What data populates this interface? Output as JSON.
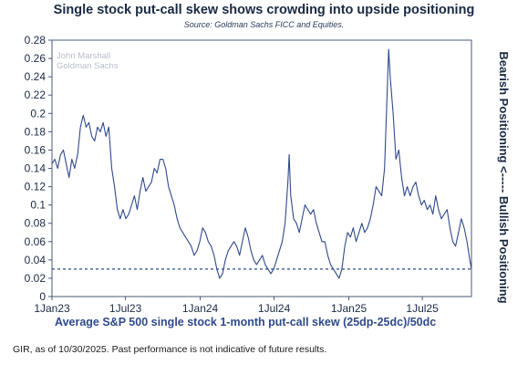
{
  "title": "Single stock put-call skew shows crowding into upside positioning",
  "source": "Source: Goldman Sachs FICC and Equities.",
  "watermark": [
    "John Marshall",
    "Goldman Sachs"
  ],
  "footer": "GIR, as of 10/30/2025. Past performance is not indicative of future results.",
  "chart_data": {
    "type": "line",
    "title": "Single stock put-call skew shows crowding into upside positioning",
    "xlabel": "Average S&P 500 single stock 1-month put-call skew (25dp-25dc)/50dc",
    "ylabel_right": "Bearish Positioning <----- Bullish Positioning",
    "ylim": [
      0,
      0.28
    ],
    "y_ticks": [
      "0",
      "0.02",
      "0.04",
      "0.06",
      "0.08",
      "0.1",
      "0.12",
      "0.14",
      "0.16",
      "0.18",
      "0.2",
      "0.22",
      "0.24",
      "0.26",
      "0.28"
    ],
    "x_ticks": [
      "1Jan23",
      "1Jul23",
      "1Jan24",
      "1Jul24",
      "1Jan25",
      "1Jul25"
    ],
    "x_range": [
      "2023-01-01",
      "2025-10-30"
    ],
    "grid": false,
    "reference_line": {
      "y": 0.03,
      "style": "dashed",
      "color": "#2f4a8c"
    },
    "series": [
      {
        "color": "#2f4a8c",
        "points": [
          [
            "2023-01-01",
            0.145
          ],
          [
            "2023-01-08",
            0.15
          ],
          [
            "2023-01-15",
            0.14
          ],
          [
            "2023-01-22",
            0.155
          ],
          [
            "2023-01-29",
            0.16
          ],
          [
            "2023-02-05",
            0.145
          ],
          [
            "2023-02-12",
            0.13
          ],
          [
            "2023-02-19",
            0.15
          ],
          [
            "2023-02-26",
            0.14
          ],
          [
            "2023-03-05",
            0.155
          ],
          [
            "2023-03-12",
            0.185
          ],
          [
            "2023-03-19",
            0.198
          ],
          [
            "2023-03-26",
            0.185
          ],
          [
            "2023-04-02",
            0.19
          ],
          [
            "2023-04-09",
            0.175
          ],
          [
            "2023-04-16",
            0.17
          ],
          [
            "2023-04-23",
            0.185
          ],
          [
            "2023-04-30",
            0.18
          ],
          [
            "2023-05-07",
            0.19
          ],
          [
            "2023-05-14",
            0.175
          ],
          [
            "2023-05-21",
            0.185
          ],
          [
            "2023-05-28",
            0.14
          ],
          [
            "2023-06-04",
            0.12
          ],
          [
            "2023-06-11",
            0.095
          ],
          [
            "2023-06-18",
            0.085
          ],
          [
            "2023-06-25",
            0.095
          ],
          [
            "2023-07-02",
            0.085
          ],
          [
            "2023-07-09",
            0.09
          ],
          [
            "2023-07-16",
            0.1
          ],
          [
            "2023-07-23",
            0.11
          ],
          [
            "2023-07-30",
            0.095
          ],
          [
            "2023-08-06",
            0.115
          ],
          [
            "2023-08-13",
            0.13
          ],
          [
            "2023-08-20",
            0.115
          ],
          [
            "2023-08-27",
            0.12
          ],
          [
            "2023-09-03",
            0.125
          ],
          [
            "2023-09-10",
            0.14
          ],
          [
            "2023-09-17",
            0.135
          ],
          [
            "2023-09-24",
            0.15
          ],
          [
            "2023-10-01",
            0.15
          ],
          [
            "2023-10-08",
            0.14
          ],
          [
            "2023-10-15",
            0.12
          ],
          [
            "2023-10-22",
            0.11
          ],
          [
            "2023-10-29",
            0.1
          ],
          [
            "2023-11-05",
            0.085
          ],
          [
            "2023-11-12",
            0.075
          ],
          [
            "2023-11-19",
            0.07
          ],
          [
            "2023-11-26",
            0.065
          ],
          [
            "2023-12-03",
            0.06
          ],
          [
            "2023-12-10",
            0.055
          ],
          [
            "2023-12-17",
            0.045
          ],
          [
            "2023-12-24",
            0.05
          ],
          [
            "2023-12-31",
            0.06
          ],
          [
            "2024-01-07",
            0.075
          ],
          [
            "2024-01-14",
            0.07
          ],
          [
            "2024-01-21",
            0.06
          ],
          [
            "2024-01-28",
            0.055
          ],
          [
            "2024-02-04",
            0.045
          ],
          [
            "2024-02-11",
            0.03
          ],
          [
            "2024-02-18",
            0.02
          ],
          [
            "2024-02-25",
            0.025
          ],
          [
            "2024-03-03",
            0.04
          ],
          [
            "2024-03-10",
            0.05
          ],
          [
            "2024-03-17",
            0.055
          ],
          [
            "2024-03-24",
            0.06
          ],
          [
            "2024-03-31",
            0.055
          ],
          [
            "2024-04-07",
            0.045
          ],
          [
            "2024-04-14",
            0.06
          ],
          [
            "2024-04-21",
            0.075
          ],
          [
            "2024-04-28",
            0.065
          ],
          [
            "2024-05-05",
            0.05
          ],
          [
            "2024-05-12",
            0.04
          ],
          [
            "2024-05-19",
            0.035
          ],
          [
            "2024-05-26",
            0.04
          ],
          [
            "2024-06-02",
            0.045
          ],
          [
            "2024-06-09",
            0.035
          ],
          [
            "2024-06-16",
            0.03
          ],
          [
            "2024-06-23",
            0.025
          ],
          [
            "2024-06-30",
            0.03
          ],
          [
            "2024-07-07",
            0.04
          ],
          [
            "2024-07-14",
            0.05
          ],
          [
            "2024-07-21",
            0.06
          ],
          [
            "2024-07-28",
            0.08
          ],
          [
            "2024-08-04",
            0.125
          ],
          [
            "2024-08-07",
            0.155
          ],
          [
            "2024-08-11",
            0.11
          ],
          [
            "2024-08-18",
            0.085
          ],
          [
            "2024-08-25",
            0.08
          ],
          [
            "2024-09-01",
            0.07
          ],
          [
            "2024-09-08",
            0.085
          ],
          [
            "2024-09-15",
            0.1
          ],
          [
            "2024-09-22",
            0.095
          ],
          [
            "2024-09-29",
            0.09
          ],
          [
            "2024-10-06",
            0.095
          ],
          [
            "2024-10-13",
            0.08
          ],
          [
            "2024-10-20",
            0.07
          ],
          [
            "2024-10-27",
            0.06
          ],
          [
            "2024-11-03",
            0.06
          ],
          [
            "2024-11-10",
            0.045
          ],
          [
            "2024-11-17",
            0.035
          ],
          [
            "2024-11-24",
            0.03
          ],
          [
            "2024-12-01",
            0.025
          ],
          [
            "2024-12-08",
            0.02
          ],
          [
            "2024-12-15",
            0.03
          ],
          [
            "2024-12-22",
            0.055
          ],
          [
            "2024-12-29",
            0.07
          ],
          [
            "2025-01-05",
            0.065
          ],
          [
            "2025-01-12",
            0.075
          ],
          [
            "2025-01-19",
            0.06
          ],
          [
            "2025-01-26",
            0.07
          ],
          [
            "2025-02-02",
            0.08
          ],
          [
            "2025-02-09",
            0.07
          ],
          [
            "2025-02-16",
            0.075
          ],
          [
            "2025-02-23",
            0.085
          ],
          [
            "2025-03-02",
            0.1
          ],
          [
            "2025-03-09",
            0.12
          ],
          [
            "2025-03-16",
            0.115
          ],
          [
            "2025-03-23",
            0.11
          ],
          [
            "2025-03-30",
            0.14
          ],
          [
            "2025-04-06",
            0.23
          ],
          [
            "2025-04-09",
            0.27
          ],
          [
            "2025-04-13",
            0.24
          ],
          [
            "2025-04-20",
            0.2
          ],
          [
            "2025-04-27",
            0.15
          ],
          [
            "2025-05-04",
            0.16
          ],
          [
            "2025-05-11",
            0.13
          ],
          [
            "2025-05-18",
            0.11
          ],
          [
            "2025-05-25",
            0.12
          ],
          [
            "2025-06-01",
            0.11
          ],
          [
            "2025-06-08",
            0.12
          ],
          [
            "2025-06-15",
            0.125
          ],
          [
            "2025-06-22",
            0.11
          ],
          [
            "2025-06-29",
            0.1
          ],
          [
            "2025-07-06",
            0.105
          ],
          [
            "2025-07-13",
            0.095
          ],
          [
            "2025-07-20",
            0.1
          ],
          [
            "2025-07-27",
            0.09
          ],
          [
            "2025-08-03",
            0.11
          ],
          [
            "2025-08-10",
            0.095
          ],
          [
            "2025-08-17",
            0.085
          ],
          [
            "2025-08-24",
            0.09
          ],
          [
            "2025-08-31",
            0.095
          ],
          [
            "2025-09-07",
            0.075
          ],
          [
            "2025-09-14",
            0.06
          ],
          [
            "2025-09-21",
            0.055
          ],
          [
            "2025-09-28",
            0.07
          ],
          [
            "2025-10-05",
            0.085
          ],
          [
            "2025-10-12",
            0.075
          ],
          [
            "2025-10-19",
            0.06
          ],
          [
            "2025-10-26",
            0.04
          ],
          [
            "2025-10-30",
            0.03
          ]
        ]
      }
    ]
  }
}
